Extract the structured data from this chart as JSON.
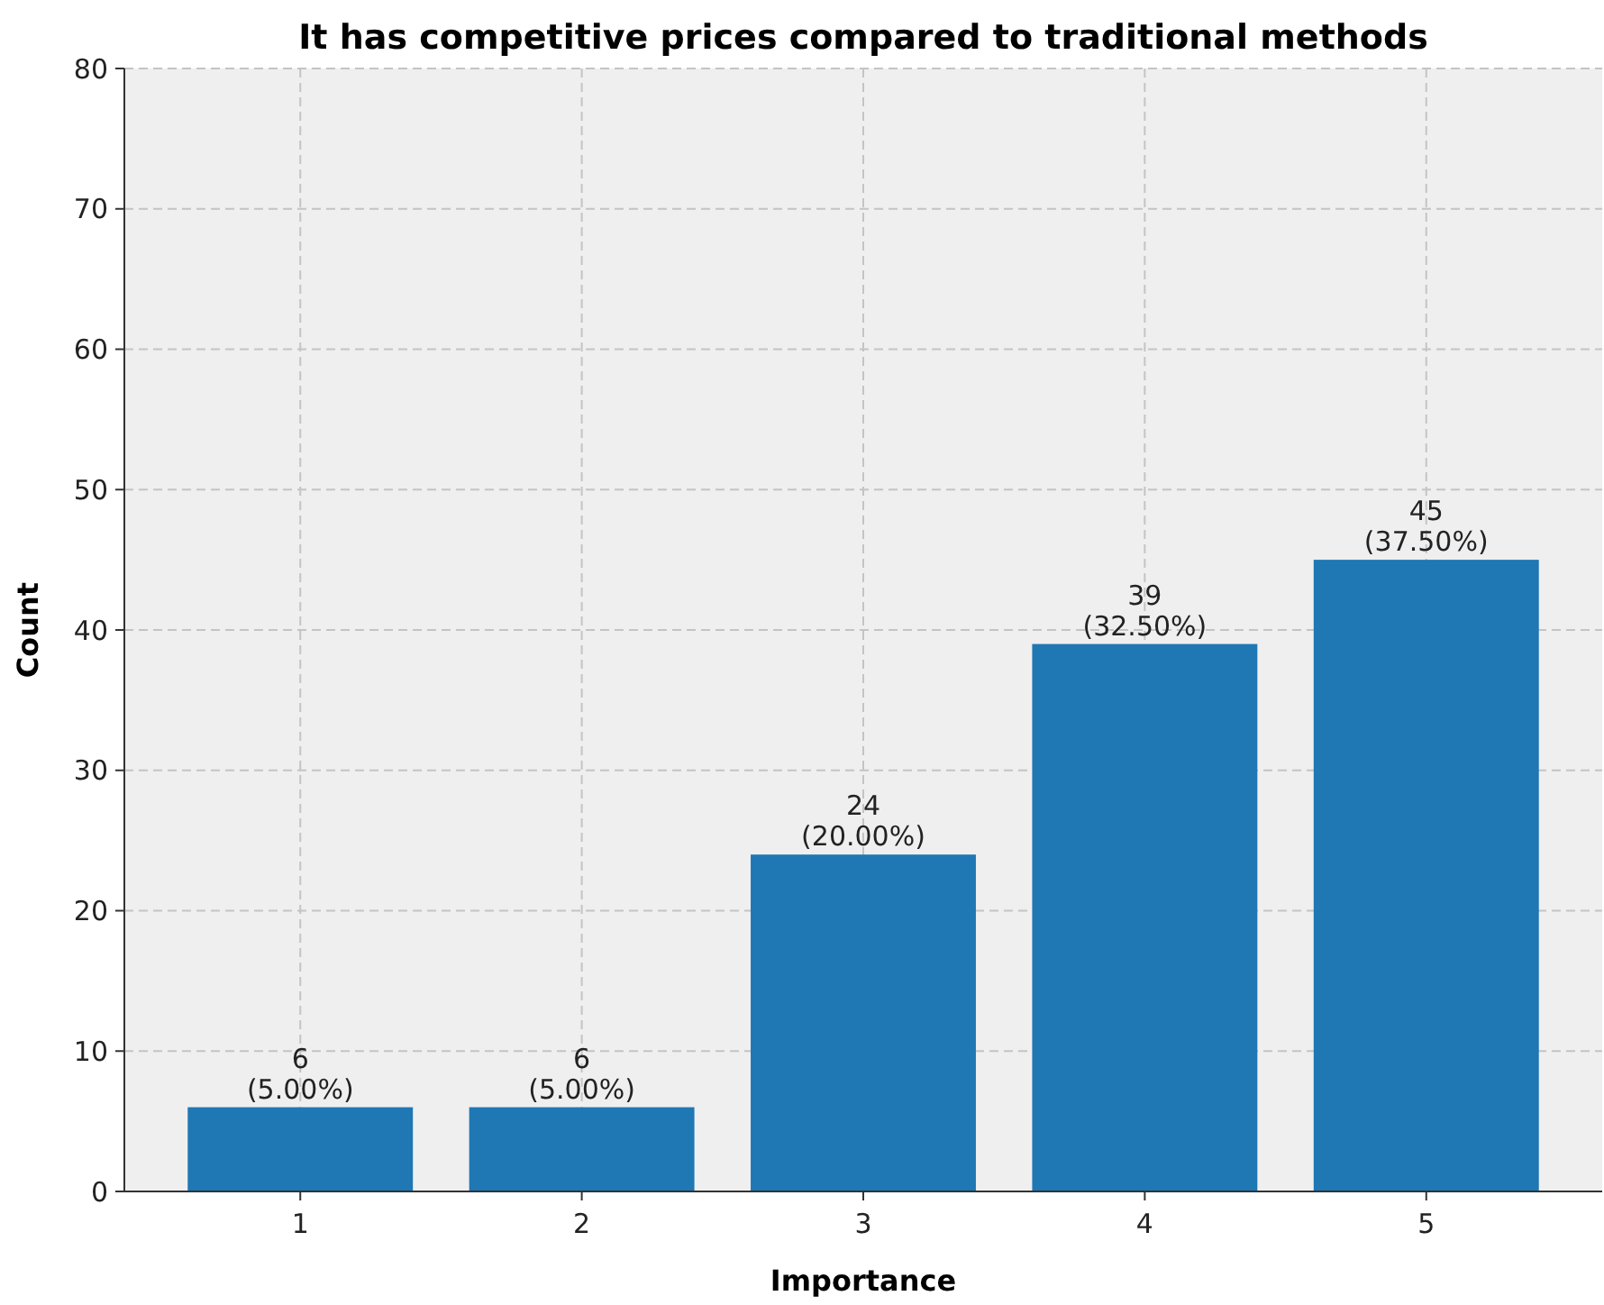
{
  "chart_data": {
    "type": "bar",
    "title": "It has competitive prices compared to traditional methods",
    "xlabel": "Importance",
    "ylabel": "Count",
    "categories": [
      "1",
      "2",
      "3",
      "4",
      "5"
    ],
    "values": [
      6,
      6,
      24,
      39,
      45
    ],
    "value_labels": [
      "6\n(5.00%)",
      "6\n(5.00%)",
      "24\n(20.00%)",
      "39\n(32.50%)",
      "45\n(37.50%)"
    ],
    "color": "#1f77b4",
    "ylim": [
      0,
      80
    ],
    "yticks": [
      0,
      10,
      20,
      30,
      40,
      50,
      60,
      70,
      80
    ],
    "grid": true
  }
}
